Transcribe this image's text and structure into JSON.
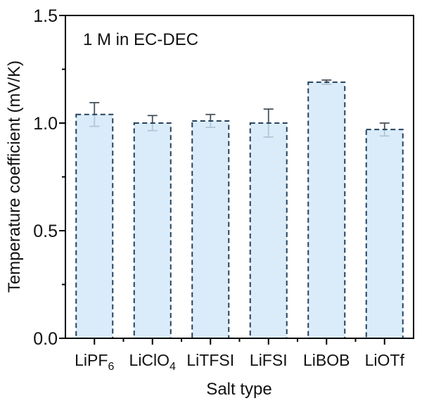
{
  "figure": {
    "kind": "static-bar-chart-figure"
  },
  "chart_data": {
    "type": "bar",
    "title": "",
    "annotation": "1 M in EC-DEC",
    "xlabel": "Salt type",
    "ylabel": "Temperature coefficient (mV/K)",
    "categories": [
      "LiPF6",
      "LiClO4",
      "LiTFSI",
      "LiFSI",
      "LiBOB",
      "LiOTf"
    ],
    "values": [
      1.04,
      1.0,
      1.01,
      1.0,
      1.19,
      0.97
    ],
    "errors": [
      0.055,
      0.035,
      0.03,
      0.065,
      0.01,
      0.03
    ],
    "ylim": [
      0.0,
      1.5
    ],
    "yticks": [
      0.0,
      0.5,
      1.0,
      1.5
    ],
    "ytick_labels": [
      "0.0",
      "0.5",
      "1.0",
      "1.5"
    ],
    "yminor_step": 0.25,
    "grid": false,
    "legend": false,
    "bar_fill": "#cfe7f9",
    "bar_edge": "#26425c",
    "error_color": "#47525b",
    "axis_color": "#000000",
    "text_color": "#111111"
  }
}
